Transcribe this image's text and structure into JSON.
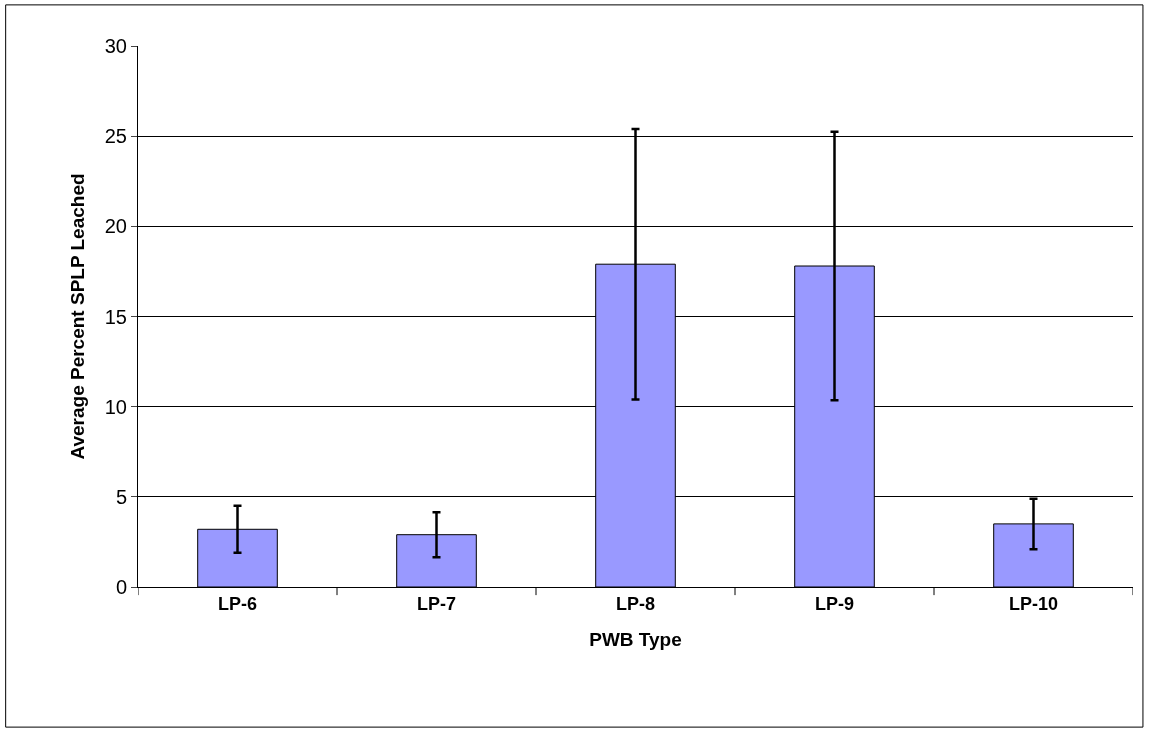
{
  "chart_data": {
    "type": "bar",
    "xlabel": "PWB Type",
    "ylabel": "Average Percent SPLP Leached",
    "categories": [
      "LP-6",
      "LP-7",
      "LP-8",
      "LP-9",
      "LP-10"
    ],
    "values": [
      3.2,
      2.9,
      17.9,
      17.8,
      3.5
    ],
    "errors": [
      1.3,
      1.25,
      7.5,
      7.45,
      1.4
    ],
    "color": "#9999ff",
    "ylim": [
      0,
      30
    ],
    "yticks": [
      0,
      5,
      10,
      15,
      20,
      25,
      30
    ],
    "grid": "y"
  }
}
